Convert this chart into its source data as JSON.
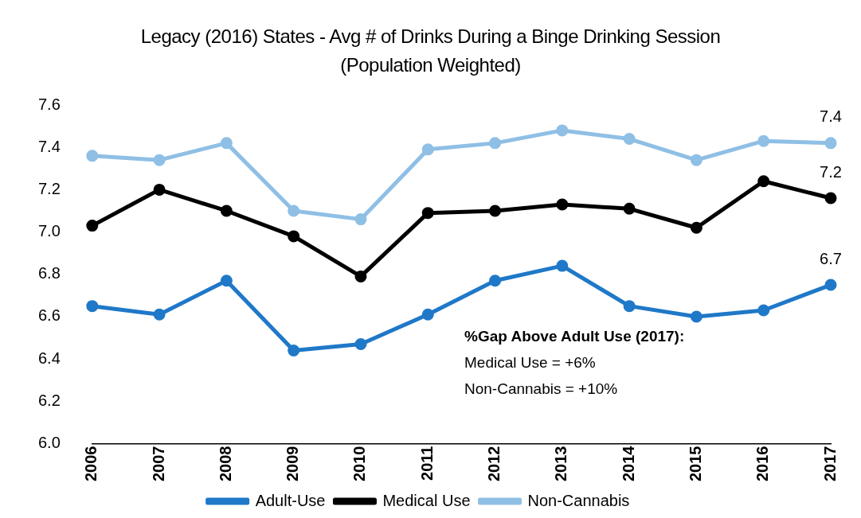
{
  "chart_data": {
    "type": "line",
    "title": "Legacy (2016) States - Avg # of Drinks During a Binge Drinking Session (Population Weighted)",
    "categories": [
      "2006",
      "2007",
      "2008",
      "2009",
      "2010",
      "2011",
      "2012",
      "2013",
      "2014",
      "2015",
      "2016",
      "2017"
    ],
    "series": [
      {
        "name": "Adult-Use",
        "color": "#1f78c8",
        "values": [
          6.65,
          6.61,
          6.77,
          6.44,
          6.47,
          6.61,
          6.77,
          6.84,
          6.65,
          6.6,
          6.63,
          6.75
        ],
        "value_labels": [
          null,
          null,
          null,
          null,
          null,
          null,
          null,
          null,
          null,
          null,
          null,
          "6.7"
        ]
      },
      {
        "name": "Medical Use",
        "color": "#000000",
        "values": [
          7.03,
          7.2,
          7.1,
          6.98,
          6.79,
          7.09,
          7.1,
          7.13,
          7.11,
          7.02,
          7.24,
          7.16
        ],
        "value_labels": [
          null,
          null,
          null,
          null,
          null,
          null,
          null,
          null,
          null,
          null,
          null,
          "7.2"
        ]
      },
      {
        "name": "Non-Cannabis",
        "color": "#8fbfe5",
        "values": [
          7.36,
          7.34,
          7.42,
          7.1,
          7.06,
          7.39,
          7.42,
          7.48,
          7.44,
          7.34,
          7.43,
          7.42
        ],
        "value_labels": [
          null,
          null,
          null,
          null,
          null,
          null,
          null,
          null,
          null,
          null,
          null,
          "7.4"
        ]
      }
    ],
    "ylim": [
      6.0,
      7.6
    ],
    "yticks": [
      {
        "value": 6.0,
        "label": "6.0"
      },
      {
        "value": 6.2,
        "label": "6.2"
      },
      {
        "value": 6.4,
        "label": "6.4"
      },
      {
        "value": 6.6,
        "label": "6.6"
      },
      {
        "value": 6.8,
        "label": "6.8"
      },
      {
        "value": 7.0,
        "label": "7.0"
      },
      {
        "value": 7.2,
        "label": "7.2"
      },
      {
        "value": 7.4,
        "label": "7.4"
      },
      {
        "value": 7.6,
        "label": "7.6"
      }
    ],
    "grid": false,
    "legend": "bottom",
    "marker": "circle",
    "line_style": "solid",
    "annotations": [
      "%Gap Above Adult Use (2017):",
      "Medical Use = +6%",
      "Non-Cannabis = +10%"
    ]
  }
}
